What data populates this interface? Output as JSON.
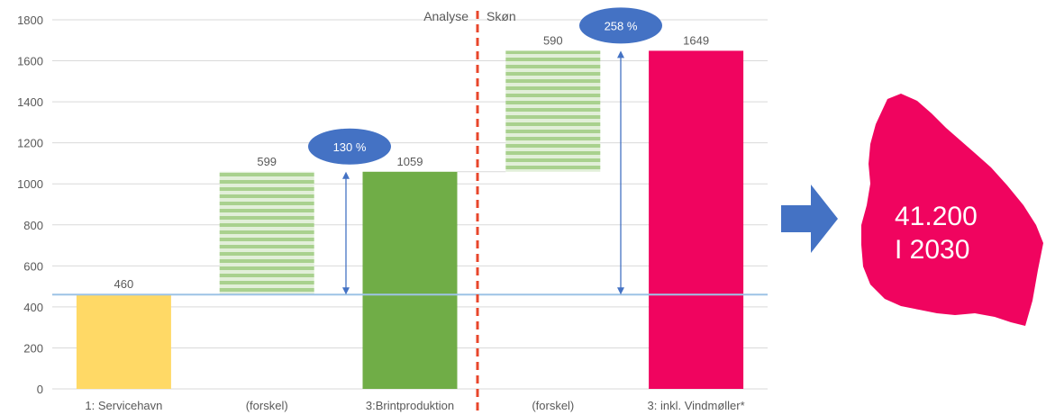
{
  "chart_data": {
    "type": "bar",
    "categories": [
      "1: Servicehavn",
      "(forskel)",
      "3:Brintproduktion",
      "(forskel)",
      "3: inkl. Vindmøller*"
    ],
    "values": [
      460,
      599,
      1059,
      590,
      1649
    ],
    "bar_bases": [
      0,
      460,
      0,
      1059,
      0
    ],
    "bar_styles": [
      "solid",
      "striped",
      "solid",
      "striped",
      "solid"
    ],
    "bar_colors": [
      "#FFD966",
      "#A9D18E",
      "#70AD47",
      "#A9D18E",
      "#F0045F"
    ],
    "data_labels": [
      "460",
      "599",
      "1059",
      "590",
      "1649"
    ],
    "ylim": [
      0,
      1800
    ],
    "yticks": [
      0,
      200,
      400,
      600,
      800,
      1000,
      1200,
      1400,
      1600,
      1800
    ],
    "grid": true,
    "reference_line": 460,
    "sections": [
      "Analyse",
      "Skøn"
    ],
    "bubbles": [
      {
        "label": "130 %",
        "from": 460,
        "to": 1059
      },
      {
        "label": "258 %",
        "from": 460,
        "to": 1649
      }
    ],
    "callout": {
      "line1": "41.200",
      "line2": "I 2030"
    }
  },
  "colors": {
    "grid": "#D9D9D9",
    "axis_text": "#595959",
    "reference_line": "#9DC3E6",
    "divider": "#E8462B",
    "bubble": "#4472C4",
    "arrow": "#4472C4",
    "big_arrow": "#4472C4",
    "blob": "#F0045F"
  },
  "icons": {
    "big_arrow": "right-arrow-icon"
  }
}
